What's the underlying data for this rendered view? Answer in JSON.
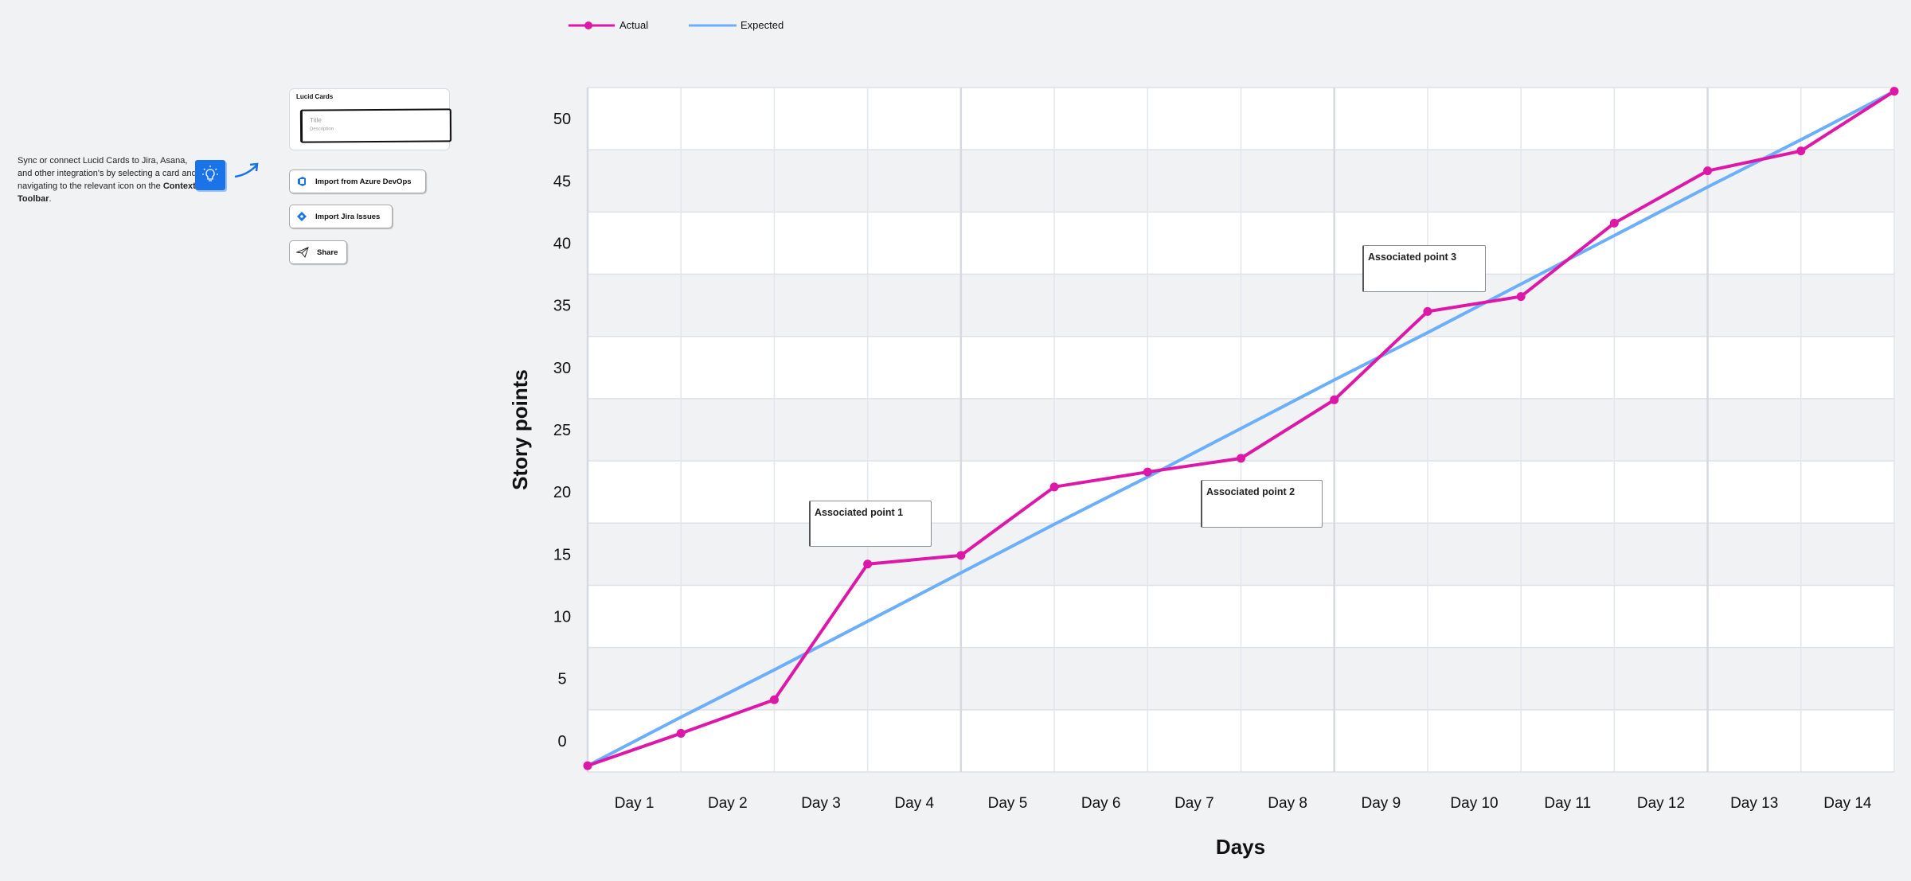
{
  "intro": {
    "text": "Sync or connect Lucid Cards to Jira, Asana, and other integration's by selecting a card and navigating to the relevant icon on the ",
    "bold": "Context Toolbar",
    "end": "."
  },
  "lucid_card": {
    "title": "Lucid Cards",
    "card_title": "Title",
    "card_description": "Description"
  },
  "buttons": {
    "azure": "Import from Azure DevOps",
    "jira": "Import Jira Issues",
    "share": "Share"
  },
  "colors": {
    "actual": "#dd17a8",
    "expected": "#6aaefc",
    "brand_blue": "#1a73e8"
  },
  "chart_data": {
    "type": "line",
    "xlabel": "Days",
    "ylabel": "Story points",
    "categories": [
      "Day 1",
      "Day 2",
      "Day 3",
      "Day 4",
      "Day 5",
      "Day 6",
      "Day 7",
      "Day 8",
      "Day 9",
      "Day 10",
      "Day 11",
      "Day 12",
      "Day 13",
      "Day 14"
    ],
    "x": [
      0,
      1,
      2,
      3,
      4,
      5,
      6,
      7,
      8,
      9,
      10,
      11,
      12,
      13,
      14
    ],
    "yticks": [
      50,
      45,
      40,
      35,
      30,
      25,
      20,
      15,
      10,
      5,
      0
    ],
    "ylim": [
      -2.5,
      52.5
    ],
    "grid": true,
    "legend_position": "top-left",
    "series": [
      {
        "name": "Actual",
        "values": [
          -2.0,
          0.6,
          3.3,
          14.2,
          14.9,
          20.4,
          21.6,
          22.7,
          27.4,
          34.5,
          35.7,
          41.6,
          45.8,
          47.4,
          52.2
        ]
      },
      {
        "name": "Expected",
        "values": [
          -2.0,
          1.9,
          5.7,
          9.6,
          13.5,
          17.4,
          21.2,
          25.1,
          29.0,
          32.8,
          36.7,
          40.6,
          44.5,
          48.3,
          52.2
        ]
      }
    ],
    "annotations": [
      "Associated point 1",
      "Associated point 2",
      "Associated point 3"
    ]
  }
}
